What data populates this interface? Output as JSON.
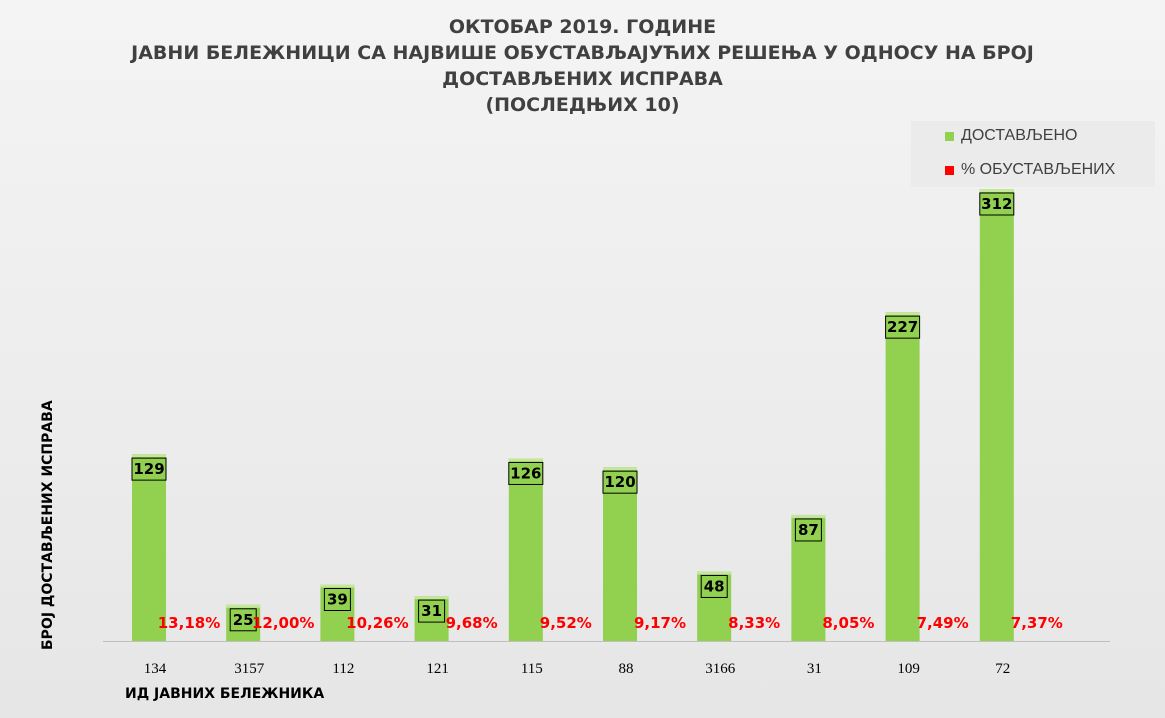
{
  "chart_data": {
    "type": "bar",
    "title_lines": [
      "ОКТОБАР 2019. ГОДИНЕ",
      "ЈАВНИ БЕЛЕЖНИЦИ СА НАЈВИШЕ ОБУСТАВЉАЈУЋИХ РЕШЕЊА У ОДНОСУ НА БРОЈ",
      "ДОСТАВЉЕНИХ ИСПРАВА",
      "(ПОСЛЕДЊИХ 10)"
    ],
    "xlabel": "ИД ЈАВНИХ БЕЛЕЖНИКА",
    "ylabel": "БРОЈ ДОСТАВЉЕНИХ ИСПРАВА",
    "categories": [
      "134",
      "3157",
      "112",
      "121",
      "115",
      "88",
      "3166",
      "31",
      "109",
      "72"
    ],
    "series": [
      {
        "name": "ДОСТАВЉЕНО",
        "color": "#92d050",
        "values": [
          129,
          25,
          39,
          31,
          126,
          120,
          48,
          87,
          227,
          312
        ],
        "labels": [
          "129",
          "25",
          "39",
          "31",
          "126",
          "120",
          "48",
          "87",
          "227",
          "312"
        ]
      },
      {
        "name": "% ОБУСТАВЉЕНИХ",
        "color": "#ff0000",
        "values": [
          13.18,
          12.0,
          10.26,
          9.68,
          9.52,
          9.17,
          8.33,
          8.05,
          7.49,
          7.37
        ],
        "labels": [
          "13,18%",
          "12,00%",
          "10,26%",
          "9,68%",
          "9,52%",
          "9,17%",
          "8,33%",
          "8,05%",
          "7,49%",
          "7,37%"
        ]
      }
    ],
    "ylim": [
      0,
      312
    ],
    "grid": false,
    "legend_position": "top-right"
  }
}
